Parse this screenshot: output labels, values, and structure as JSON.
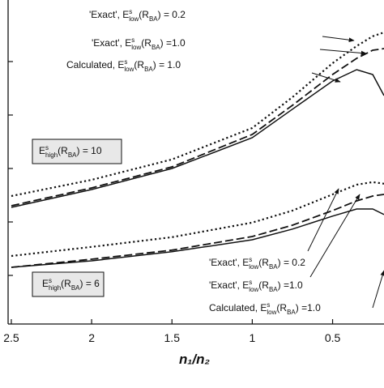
{
  "chart_data": {
    "type": "line",
    "x_label": "n₁/n₂",
    "xlim": [
      2.52,
      0.18
    ],
    "xticks": [
      2.5,
      2,
      1.5,
      1,
      0.5
    ],
    "ylim": [
      0,
      100
    ],
    "x": [
      2.5,
      2,
      1.5,
      1,
      0.75,
      0.5,
      0.35,
      0.25,
      0.18
    ],
    "series": [
      {
        "name": "'Exact', Eslow(RBA) = 0.2 (upper)",
        "style": "dotted",
        "color": "#111111",
        "values": [
          39.5,
          44.5,
          50.8,
          60.5,
          70,
          80.5,
          85.8,
          88.8,
          90
        ]
      },
      {
        "name": "'Exact', Eslow(RBA) =1.0 (upper)",
        "style": "dashed",
        "color": "#111111",
        "values": [
          36.5,
          42,
          48.5,
          58.5,
          67.5,
          77,
          82,
          84.5,
          85
        ]
      },
      {
        "name": "Calculated, Eslow(RBA) = 1.0 (upper)",
        "style": "solid",
        "color": "#111111",
        "values": [
          36,
          41.5,
          48,
          57.5,
          66.3,
          75,
          78.5,
          77,
          70.5
        ]
      },
      {
        "name": "'Exact', Eslow(RBA) = 0.2 (lower)",
        "style": "dotted",
        "color": "#111111",
        "values": [
          21,
          23.8,
          26.8,
          31.3,
          35,
          40,
          43,
          43.8,
          43.3
        ]
      },
      {
        "name": "'Exact', Eslow(RBA) =1.0 (lower)",
        "style": "dashed",
        "color": "#111111",
        "values": [
          17.5,
          20,
          22.8,
          27,
          30.5,
          35,
          38,
          39.5,
          40
        ]
      },
      {
        "name": "Calculated, Eslow(RBA) =1.0 (lower)",
        "style": "solid",
        "color": "#111111",
        "values": [
          17.5,
          19.5,
          22.3,
          26,
          29.3,
          33.3,
          35.5,
          35.5,
          33.8
        ]
      }
    ],
    "annotations": [
      [
        "'Exact', E",
        "s",
        "low",
        "(R",
        "BA",
        ") = 0.2"
      ],
      [
        "'Exact', E",
        "s",
        "low",
        "(R",
        "BA",
        ") =1.0"
      ],
      [
        "Calculated, E",
        "s",
        "low",
        "(R",
        "BA",
        ") = 1.0"
      ],
      [
        "E",
        "s",
        "high",
        "(R",
        "BA",
        ") = 10"
      ],
      [
        "E",
        "s",
        "high",
        "(R",
        "BA",
        ") = 6"
      ],
      [
        "'Exact', E",
        "s",
        "low",
        "(R",
        "BA",
        ") = 0.2"
      ],
      [
        "'Exact', E",
        "s",
        "low",
        "(R",
        "BA",
        ") =1.0"
      ],
      [
        "Calculated, E",
        "s",
        "low",
        "(R",
        "BA",
        ") =1.0"
      ]
    ]
  }
}
